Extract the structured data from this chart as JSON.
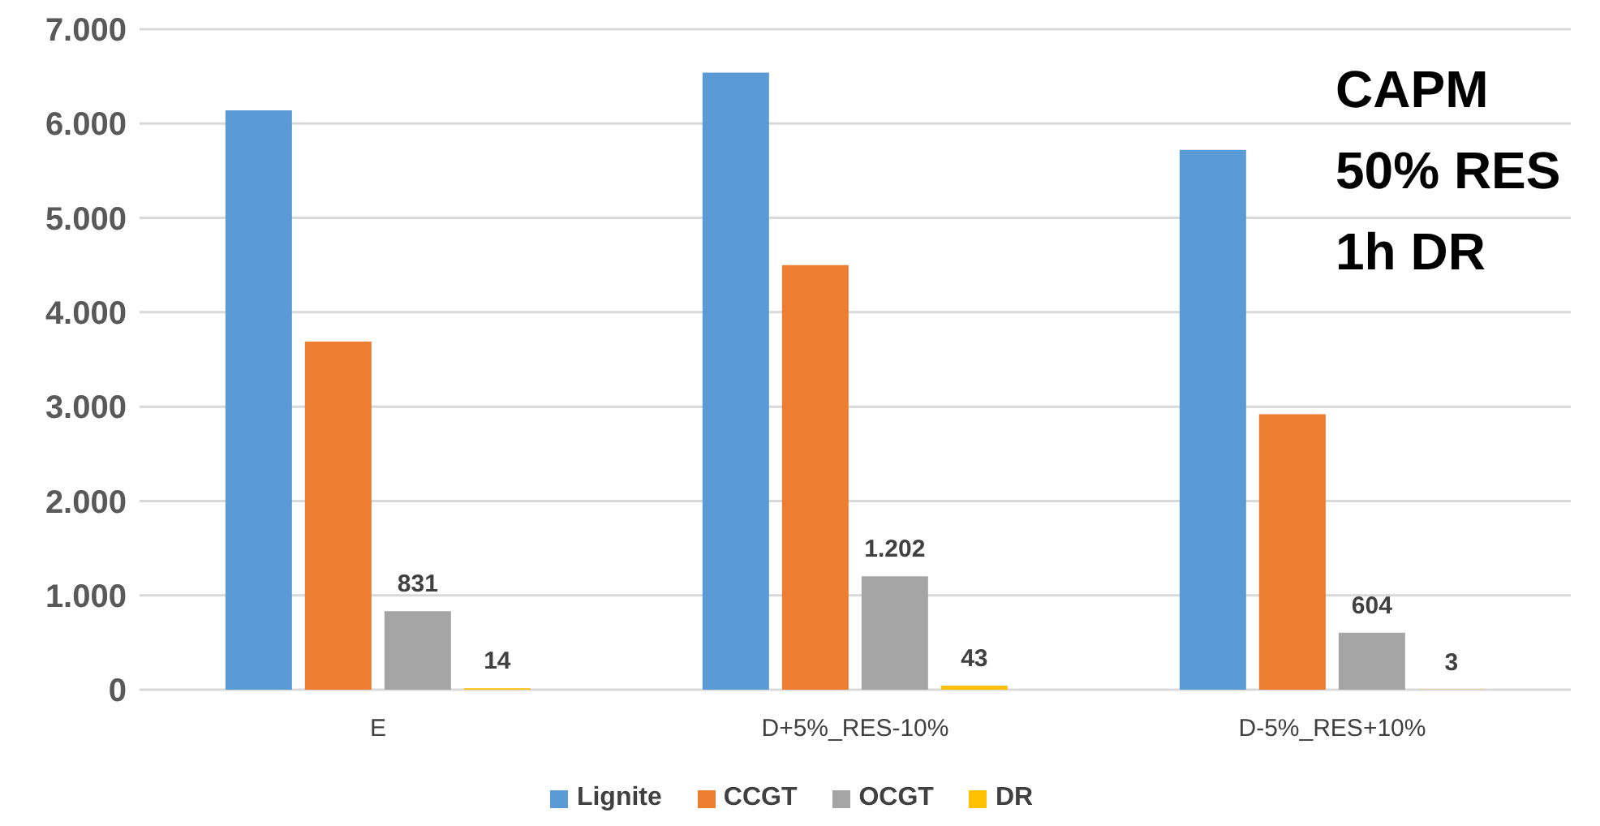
{
  "chart_data": {
    "type": "bar",
    "categories": [
      "E",
      "D+5%_RES-10%",
      "D-5%_RES+10%"
    ],
    "series": [
      {
        "name": "Lignite",
        "color": "#5b9bd5",
        "values": [
          6140,
          6540,
          5720
        ]
      },
      {
        "name": "CCGT",
        "color": "#ed7d31",
        "values": [
          3690,
          4500,
          2920
        ]
      },
      {
        "name": "OCGT",
        "color": "#a5a5a5",
        "values": [
          831,
          1202,
          604
        ],
        "value_labels": [
          "831",
          "1.202",
          "604"
        ]
      },
      {
        "name": "DR",
        "color": "#ffc000",
        "values": [
          14,
          43,
          3
        ],
        "value_labels": [
          "14",
          "43",
          "3"
        ]
      }
    ],
    "ylim": [
      0,
      7000
    ],
    "yticks": [
      {
        "value": 0,
        "label": "0"
      },
      {
        "value": 1000,
        "label": "1.000"
      },
      {
        "value": 2000,
        "label": "2.000"
      },
      {
        "value": 3000,
        "label": "3.000"
      },
      {
        "value": 4000,
        "label": "4.000"
      },
      {
        "value": 5000,
        "label": "5.000"
      },
      {
        "value": 6000,
        "label": "6.000"
      },
      {
        "value": 7000,
        "label": "7.000"
      }
    ],
    "grid": "y",
    "legend": "bottom",
    "annotations": [
      "CAPM\n50% RES\n1h DR"
    ]
  }
}
